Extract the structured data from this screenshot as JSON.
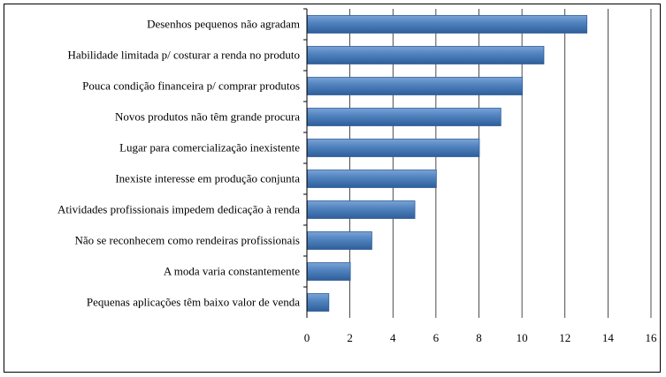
{
  "chart_data": {
    "type": "bar",
    "orientation": "horizontal",
    "categories": [
      "Desenhos pequenos não agradam",
      "Habilidade limitada p/ costurar a renda no produto",
      "Pouca condição financeira p/ comprar produtos",
      "Novos produtos não têm grande procura",
      "Lugar para comercialização inexistente",
      "Inexiste interesse em produção conjunta",
      "Atividades profissionais impedem dedicação à renda",
      "Não se reconhecem como rendeiras profissionais",
      "A moda varia constantemente",
      "Pequenas aplicações têm baixo valor de venda"
    ],
    "values": [
      13,
      11,
      10,
      9,
      8,
      6,
      5,
      3,
      2,
      1
    ],
    "xlim": [
      0,
      16
    ],
    "xticks": [
      "0",
      "2",
      "4",
      "6",
      "8",
      "10",
      "12",
      "14",
      "16"
    ],
    "grid": true,
    "legend": "none",
    "colors": {
      "bar_fill": "#4f81bd",
      "bar_light": "#7aa3d6",
      "bar_dark": "#2f5f9a",
      "grid": "#000000"
    }
  }
}
